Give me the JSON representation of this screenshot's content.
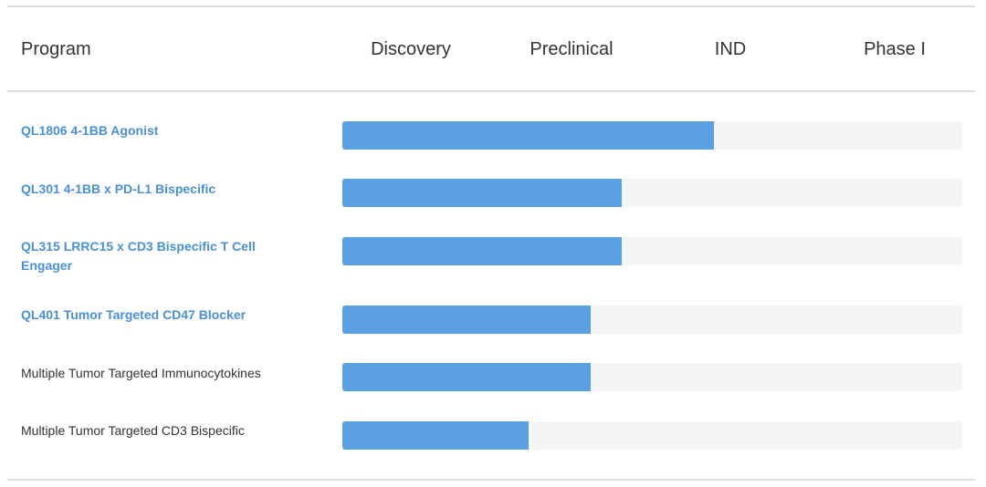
{
  "header": {
    "program_label": "Program",
    "phases": [
      "Discovery",
      "Preclinical",
      "IND",
      "Phase I"
    ]
  },
  "colors": {
    "bar_fill": "#5aa0e2",
    "bar_track": "#f5f5f5",
    "link_text": "#4a90d6"
  },
  "programs": [
    {
      "name": "QL1806 4-1BB Agonist",
      "is_link": true,
      "progress_pct": 60
    },
    {
      "name": "QL301 4-1BB x PD-L1 Bispecific",
      "is_link": true,
      "progress_pct": 45
    },
    {
      "name": "QL315 LRRC15 x CD3 Bispecific T Cell Engager",
      "is_link": true,
      "progress_pct": 45
    },
    {
      "name": "QL401 Tumor Targeted CD47 Blocker",
      "is_link": true,
      "progress_pct": 40
    },
    {
      "name": "Multiple Tumor Targeted Immunocytokines",
      "is_link": false,
      "progress_pct": 40
    },
    {
      "name": "Multiple Tumor Targeted CD3 Bispecific",
      "is_link": false,
      "progress_pct": 30
    }
  ]
}
